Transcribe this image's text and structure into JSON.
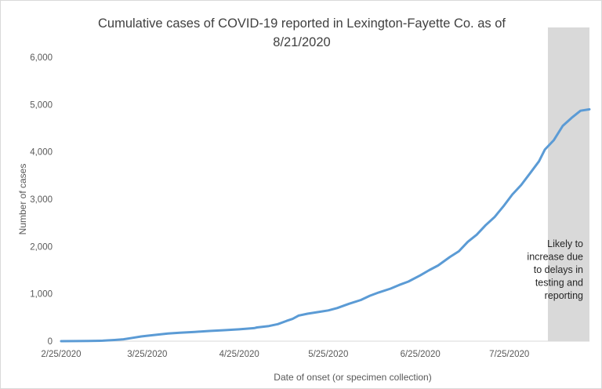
{
  "chart_data": {
    "type": "line",
    "title_line1": "Cumulative cases of COVID-19 reported in Lexington-Fayette Co.  as of",
    "title_line2": "8/21/2020",
    "xlabel": "Date of onset (or specimen collection)",
    "ylabel": "Number of cases",
    "ylim": [
      0,
      6000
    ],
    "y_ticks": [
      "0",
      "1,000",
      "2,000",
      "3,000",
      "4,000",
      "5,000",
      "6,000"
    ],
    "x_ticks": [
      "2/25/2020",
      "3/25/2020",
      "4/25/2020",
      "5/25/2020",
      "6/25/2020",
      "7/25/2020"
    ],
    "xlim": [
      "2/25/2020",
      "8/21/2020"
    ],
    "grid": false,
    "series": [
      {
        "color": "#5b9bd5",
        "points": [
          [
            "2/25/2020",
            0
          ],
          [
            "3/1/2020",
            2
          ],
          [
            "3/5/2020",
            4
          ],
          [
            "3/10/2020",
            10
          ],
          [
            "3/14/2020",
            25
          ],
          [
            "3/17/2020",
            40
          ],
          [
            "3/20/2020",
            70
          ],
          [
            "3/23/2020",
            100
          ],
          [
            "3/25/2020",
            115
          ],
          [
            "3/28/2020",
            135
          ],
          [
            "4/1/2020",
            160
          ],
          [
            "4/5/2020",
            178
          ],
          [
            "4/10/2020",
            195
          ],
          [
            "4/15/2020",
            215
          ],
          [
            "4/20/2020",
            232
          ],
          [
            "4/25/2020",
            250
          ],
          [
            "4/30/2020",
            275
          ],
          [
            "5/1/2020",
            290
          ],
          [
            "5/5/2020",
            320
          ],
          [
            "5/8/2020",
            360
          ],
          [
            "5/11/2020",
            430
          ],
          [
            "5/13/2020",
            470
          ],
          [
            "5/15/2020",
            540
          ],
          [
            "5/18/2020",
            580
          ],
          [
            "5/22/2020",
            620
          ],
          [
            "5/25/2020",
            650
          ],
          [
            "5/28/2020",
            700
          ],
          [
            "6/1/2020",
            790
          ],
          [
            "6/5/2020",
            870
          ],
          [
            "6/8/2020",
            960
          ],
          [
            "6/11/2020",
            1030
          ],
          [
            "6/15/2020",
            1110
          ],
          [
            "6/18/2020",
            1190
          ],
          [
            "6/21/2020",
            1260
          ],
          [
            "6/25/2020",
            1390
          ],
          [
            "6/28/2020",
            1500
          ],
          [
            "7/1/2020",
            1600
          ],
          [
            "7/5/2020",
            1780
          ],
          [
            "7/8/2020",
            1900
          ],
          [
            "7/11/2020",
            2100
          ],
          [
            "7/14/2020",
            2250
          ],
          [
            "7/17/2020",
            2450
          ],
          [
            "7/20/2020",
            2620
          ],
          [
            "7/23/2020",
            2850
          ],
          [
            "7/26/2020",
            3100
          ],
          [
            "7/29/2020",
            3300
          ],
          [
            "8/1/2020",
            3550
          ],
          [
            "8/4/2020",
            3800
          ],
          [
            "8/6/2020",
            4050
          ],
          [
            "8/9/2020",
            4250
          ],
          [
            "8/12/2020",
            4550
          ],
          [
            "8/15/2020",
            4720
          ],
          [
            "8/18/2020",
            4870
          ],
          [
            "8/21/2020",
            4900
          ]
        ]
      }
    ],
    "shaded_region": {
      "start": "8/7/2020",
      "end": "8/21/2020",
      "color": "#d9d9d9",
      "note_lines": [
        "Likely to",
        "increase due",
        "to delays in",
        "testing and",
        "reporting"
      ]
    }
  }
}
